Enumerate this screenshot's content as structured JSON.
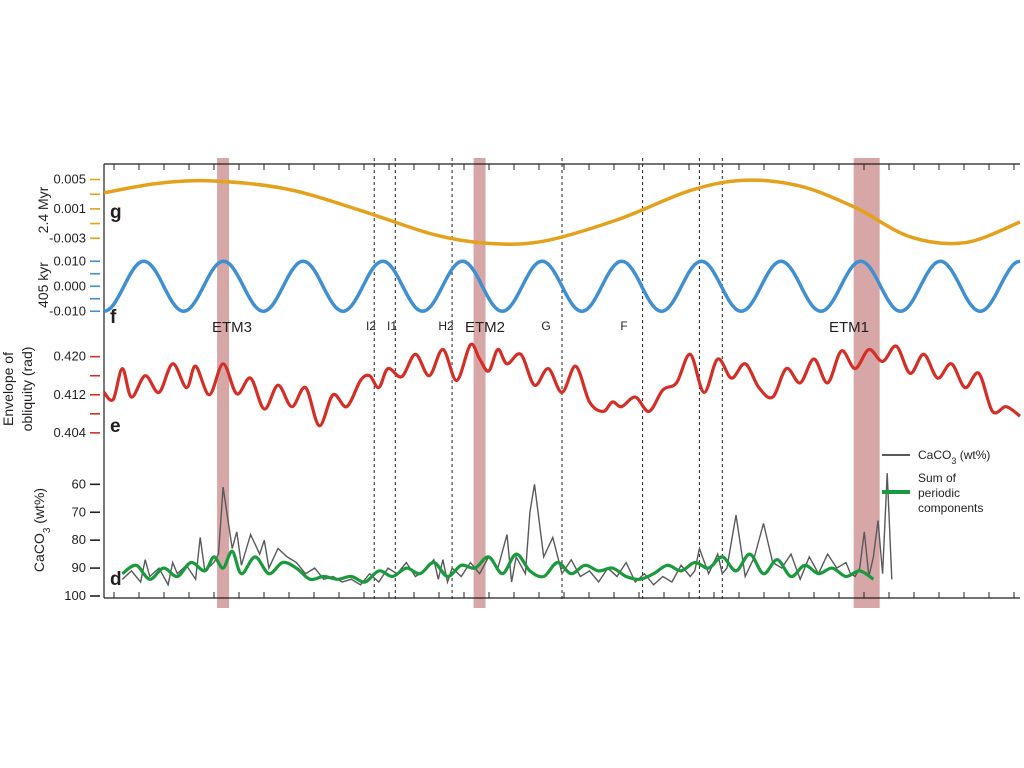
{
  "colors": {
    "g": "#e3a11d",
    "f": "#3f8fd1",
    "e": "#d32f26",
    "d_caco3": "#58595b",
    "d_periodic": "#1a9a3c",
    "band": "#c98a8a",
    "axis": "#231f20"
  },
  "chart_data": [
    {
      "panel": "g",
      "type": "line",
      "ylabel": "2.4 Myr",
      "yticks": [
        "0.005",
        "0.001",
        "-0.003"
      ],
      "ytick_values": [
        0.005,
        0.001,
        -0.003
      ],
      "ylim": [
        -0.0046,
        0.0063
      ],
      "series": [
        {
          "color_key": "g",
          "x": [
            0.0,
            0.06,
            0.12,
            0.2,
            0.28,
            0.36,
            0.42,
            0.48,
            0.56,
            0.64,
            0.7,
            0.76,
            0.82,
            0.88,
            0.94,
            1.0
          ],
          "y": [
            0.0032,
            0.0045,
            0.0048,
            0.0037,
            0.0008,
            -0.0025,
            -0.0037,
            -0.0034,
            -0.0005,
            0.0035,
            0.0049,
            0.0041,
            0.0012,
            -0.0028,
            -0.0036,
            -0.0008
          ]
        }
      ]
    },
    {
      "panel": "f",
      "type": "line",
      "ylabel": "405 kyr",
      "yticks": [
        "0.010",
        "0.000",
        "-0.010"
      ],
      "ytick_values": [
        0.01,
        0.0,
        -0.01
      ],
      "ylim": [
        -0.0115,
        0.0125
      ],
      "series": [
        {
          "color_key": "f",
          "cycles": 11.5,
          "phase": -1.5708,
          "amplitude": 0.01
        }
      ]
    },
    {
      "panel": "e",
      "type": "line",
      "ylabel": "Envelope of obliquity (rad)",
      "yticks": [
        "0.420",
        "0.412",
        "0.404"
      ],
      "ytick_values": [
        0.42,
        0.412,
        0.404
      ],
      "ylim": [
        0.4025,
        0.4235
      ],
      "series": [
        {
          "color_key": "e",
          "x": [
            0.0,
            0.01,
            0.02,
            0.03,
            0.045,
            0.06,
            0.075,
            0.09,
            0.1,
            0.115,
            0.13,
            0.145,
            0.16,
            0.175,
            0.19,
            0.205,
            0.22,
            0.235,
            0.25,
            0.265,
            0.28,
            0.29,
            0.3,
            0.31,
            0.325,
            0.34,
            0.355,
            0.37,
            0.385,
            0.4,
            0.41,
            0.42,
            0.43,
            0.44,
            0.455,
            0.47,
            0.485,
            0.5,
            0.515,
            0.53,
            0.545,
            0.555,
            0.565,
            0.58,
            0.595,
            0.61,
            0.625,
            0.64,
            0.655,
            0.67,
            0.685,
            0.7,
            0.715,
            0.73,
            0.745,
            0.76,
            0.775,
            0.79,
            0.805,
            0.82,
            0.835,
            0.85,
            0.865,
            0.88,
            0.895,
            0.91,
            0.925,
            0.94,
            0.955,
            0.97,
            0.985,
            1.0
          ],
          "y": [
            0.4125,
            0.411,
            0.4175,
            0.4115,
            0.416,
            0.4125,
            0.4185,
            0.4135,
            0.418,
            0.412,
            0.4185,
            0.4122,
            0.4155,
            0.409,
            0.414,
            0.4095,
            0.4135,
            0.4055,
            0.412,
            0.4095,
            0.415,
            0.416,
            0.4135,
            0.4175,
            0.4158,
            0.4205,
            0.416,
            0.4215,
            0.415,
            0.4225,
            0.4195,
            0.417,
            0.4215,
            0.4185,
            0.4205,
            0.414,
            0.4175,
            0.4125,
            0.418,
            0.4105,
            0.4085,
            0.4105,
            0.4095,
            0.4115,
            0.4085,
            0.413,
            0.4145,
            0.4205,
            0.4125,
            0.4195,
            0.4155,
            0.4185,
            0.4135,
            0.4115,
            0.4175,
            0.4145,
            0.4195,
            0.4145,
            0.4212,
            0.4175,
            0.4215,
            0.419,
            0.4222,
            0.4165,
            0.4205,
            0.4155,
            0.4185,
            0.4135,
            0.4165,
            0.4085,
            0.4095,
            0.4075
          ]
        }
      ]
    },
    {
      "panel": "d",
      "type": "line",
      "ylabel": "CaCO3 (wt%)",
      "ylabel_main": "CaCO",
      "ylabel_sub": "3",
      "ylabel_tail": " (wt%)",
      "yticks": [
        "60",
        "70",
        "80",
        "90",
        "100"
      ],
      "ytick_values": [
        60,
        70,
        80,
        90,
        100
      ],
      "ylim": [
        100,
        52
      ],
      "series": [
        {
          "name": "CaCO3 (wt%)",
          "name_main": "CaCO",
          "name_sub": "3",
          "name_tail": " (wt%)",
          "color_key": "d_caco3",
          "x": [
            0.02,
            0.03,
            0.04,
            0.045,
            0.05,
            0.06,
            0.07,
            0.075,
            0.08,
            0.09,
            0.1,
            0.105,
            0.11,
            0.12,
            0.125,
            0.13,
            0.14,
            0.145,
            0.15,
            0.16,
            0.17,
            0.175,
            0.18,
            0.19,
            0.2,
            0.21,
            0.22,
            0.23,
            0.24,
            0.25,
            0.26,
            0.27,
            0.28,
            0.29,
            0.3,
            0.31,
            0.32,
            0.33,
            0.34,
            0.35,
            0.36,
            0.365,
            0.37,
            0.375,
            0.38,
            0.39,
            0.4,
            0.41,
            0.42,
            0.43,
            0.44,
            0.445,
            0.45,
            0.46,
            0.465,
            0.47,
            0.48,
            0.49,
            0.5,
            0.51,
            0.52,
            0.53,
            0.54,
            0.55,
            0.56,
            0.57,
            0.58,
            0.59,
            0.6,
            0.61,
            0.62,
            0.63,
            0.64,
            0.645,
            0.65,
            0.66,
            0.67,
            0.675,
            0.68,
            0.69,
            0.7,
            0.71,
            0.72,
            0.73,
            0.74,
            0.75,
            0.76,
            0.77,
            0.78,
            0.79,
            0.8,
            0.81,
            0.815,
            0.82,
            0.825,
            0.83,
            0.835,
            0.84,
            0.845,
            0.85,
            0.855,
            0.86
          ],
          "y": [
            94,
            91,
            95,
            87,
            93,
            90,
            96,
            88,
            92,
            89,
            94,
            79,
            91,
            88,
            85,
            61,
            83,
            77,
            89,
            78,
            85,
            80,
            90,
            83,
            86,
            88,
            92,
            90,
            94,
            93,
            95,
            94,
            96,
            92,
            95,
            90,
            92,
            88,
            93,
            91,
            87,
            94,
            87,
            95,
            90,
            93,
            88,
            92,
            86,
            90,
            78,
            95,
            86,
            92,
            70,
            60,
            86,
            79,
            92,
            87,
            93,
            91,
            95,
            90,
            93,
            88,
            95,
            92,
            96,
            93,
            95,
            89,
            93,
            91,
            83,
            92,
            85,
            92,
            90,
            71,
            93,
            86,
            74,
            88,
            90,
            85,
            94,
            86,
            92,
            85,
            90,
            88,
            92,
            93,
            90,
            77,
            93,
            86,
            73,
            92,
            56,
            94
          ]
        },
        {
          "name": "Sum of periodic components",
          "color_key": "d_periodic",
          "x": [
            0.02,
            0.035,
            0.05,
            0.065,
            0.08,
            0.095,
            0.11,
            0.12,
            0.13,
            0.14,
            0.15,
            0.165,
            0.18,
            0.195,
            0.21,
            0.225,
            0.24,
            0.255,
            0.27,
            0.285,
            0.3,
            0.315,
            0.33,
            0.345,
            0.36,
            0.375,
            0.39,
            0.405,
            0.42,
            0.435,
            0.45,
            0.465,
            0.48,
            0.495,
            0.51,
            0.525,
            0.54,
            0.555,
            0.57,
            0.585,
            0.6,
            0.615,
            0.63,
            0.645,
            0.66,
            0.675,
            0.69,
            0.705,
            0.72,
            0.735,
            0.75,
            0.765,
            0.78,
            0.795,
            0.81,
            0.825,
            0.84
          ],
          "y": [
            92,
            89,
            94,
            90,
            93,
            88,
            91,
            86,
            90,
            84,
            92,
            86,
            92,
            88,
            90,
            94,
            93,
            94,
            93,
            95,
            91,
            93,
            90,
            92,
            88,
            93,
            89,
            90,
            86,
            92,
            85,
            91,
            93,
            88,
            92,
            89,
            91,
            90,
            93,
            94,
            92,
            89,
            91,
            88,
            90,
            86,
            91,
            85,
            92,
            87,
            93,
            89,
            92,
            90,
            93,
            91,
            94
          ]
        }
      ]
    }
  ],
  "panels": [
    {
      "letter": "g",
      "ylabel": "2.4 Myr"
    },
    {
      "letter": "f",
      "ylabel": "405 kyr"
    },
    {
      "letter": "e",
      "ylabel_line1": "Envelope of",
      "ylabel_line2": "obliquity (rad)"
    },
    {
      "letter": "d"
    }
  ],
  "events": {
    "bands": [
      {
        "label": "ETM3",
        "x": 0.13
      },
      {
        "label": "ETM2",
        "x": 0.41
      },
      {
        "label": "ETM1",
        "x": 0.825
      }
    ],
    "lines": [
      {
        "label": "I2",
        "x": 0.295
      },
      {
        "label": "I1",
        "x": 0.318
      },
      {
        "label": "H2",
        "x": 0.38
      },
      {
        "label": "G",
        "x": 0.5
      },
      {
        "label": "F",
        "x": 0.588
      },
      {
        "label": "",
        "x": 0.65
      },
      {
        "label": "",
        "x": 0.675
      }
    ]
  }
}
